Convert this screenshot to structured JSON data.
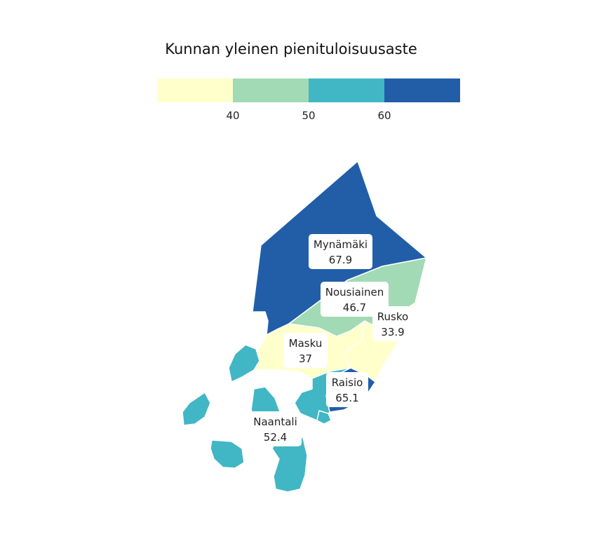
{
  "legend": {
    "title": "Kunnan yleinen pienituloisuusaste",
    "bins": [
      {
        "color": "#ffffcc",
        "max": 40
      },
      {
        "color": "#a1dab4",
        "min": 40,
        "max": 50
      },
      {
        "color": "#41b6c4",
        "min": 50,
        "max": 60
      },
      {
        "color": "#225ea8",
        "min": 60
      }
    ],
    "ticks": [
      "40",
      "50",
      "60"
    ]
  },
  "municipalities": [
    {
      "id": "mynamaki",
      "name": "Mynämäki",
      "value_label": "67.9",
      "value": 67.9,
      "color": "#225ea8"
    },
    {
      "id": "nousiainen",
      "name": "Nousiainen",
      "value_label": "46.7",
      "value": 46.7,
      "color": "#a1dab4"
    },
    {
      "id": "rusko",
      "name": "Rusko",
      "value_label": "33.9",
      "value": 33.9,
      "color": "#ffffcc"
    },
    {
      "id": "masku",
      "name": "Masku",
      "value_label": "37",
      "value": 37,
      "color": "#ffffcc"
    },
    {
      "id": "raisio",
      "name": "Raisio",
      "value_label": "65.1",
      "value": 65.1,
      "color": "#225ea8"
    },
    {
      "id": "naantali",
      "name": "Naantali",
      "value_label": "52.4",
      "value": 52.4,
      "color": "#41b6c4"
    }
  ]
}
